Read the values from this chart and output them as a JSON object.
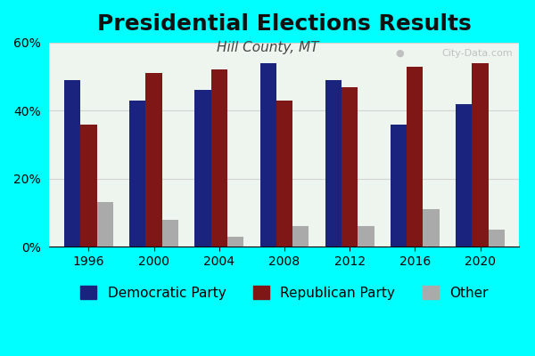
{
  "title": "Presidential Elections Results",
  "subtitle": "Hill County, MT",
  "years": [
    1996,
    2000,
    2004,
    2008,
    2012,
    2016,
    2020
  ],
  "democratic": [
    49,
    43,
    46,
    54,
    49,
    36,
    42
  ],
  "republican": [
    36,
    51,
    52,
    43,
    47,
    53,
    54
  ],
  "other": [
    13,
    8,
    3,
    6,
    6,
    11,
    5
  ],
  "dem_color": "#1a237e",
  "rep_color": "#7f1717",
  "other_color": "#aaaaaa",
  "background_outer": "#00ffff",
  "background_inner": "#eef5ee",
  "ylim": [
    0,
    60
  ],
  "yticks": [
    0,
    20,
    40,
    60
  ],
  "ytick_labels": [
    "0%",
    "20%",
    "40%",
    "60%"
  ],
  "title_fontsize": 18,
  "subtitle_fontsize": 11,
  "legend_fontsize": 11,
  "bar_width": 0.25
}
